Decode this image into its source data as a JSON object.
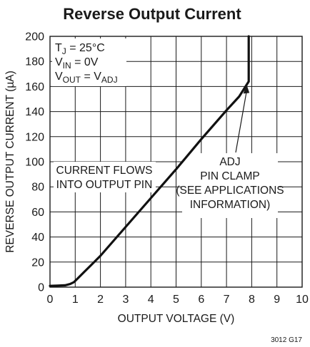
{
  "chart_data": {
    "type": "line",
    "title": "Reverse Output Current",
    "xlabel": "OUTPUT VOLTAGE (V)",
    "ylabel": "REVERSE OUTPUT CURRENT (µA)",
    "xlim": [
      0,
      10
    ],
    "ylim": [
      0,
      200
    ],
    "x_ticks": [
      "0",
      "1",
      "2",
      "3",
      "4",
      "5",
      "6",
      "7",
      "8",
      "9",
      "10"
    ],
    "y_ticks": [
      "0",
      "20",
      "40",
      "60",
      "80",
      "100",
      "120",
      "140",
      "160",
      "180",
      "200"
    ],
    "grid": true,
    "conditions": [
      {
        "base": "T",
        "sub": "J",
        "rest": " = 25°C"
      },
      {
        "base": "V",
        "sub": "IN",
        "rest": " = 0V"
      },
      {
        "base": "V",
        "sub": "OUT",
        "rest": " = V",
        "sub2": "ADJ"
      }
    ],
    "annotations": {
      "flow": [
        "CURRENT FLOWS",
        "INTO OUTPUT PIN"
      ],
      "clamp": [
        "ADJ",
        "PIN CLAMP",
        "(SEE APPLICATIONS",
        "INFORMATION)"
      ]
    },
    "figure_code": "3012 G17",
    "series": [
      {
        "x": [
          0,
          0.3,
          0.6,
          0.8,
          0.95,
          1.1,
          1.3,
          1.6,
          2.0,
          3.0,
          4.0,
          5.0,
          6.0,
          7.0,
          7.5,
          7.88,
          7.88,
          7.88
        ],
        "y": [
          1,
          1.2,
          1.5,
          2.5,
          4,
          7,
          11,
          17,
          25,
          48,
          71,
          94,
          118,
          141,
          152,
          164,
          185,
          200
        ]
      }
    ]
  }
}
